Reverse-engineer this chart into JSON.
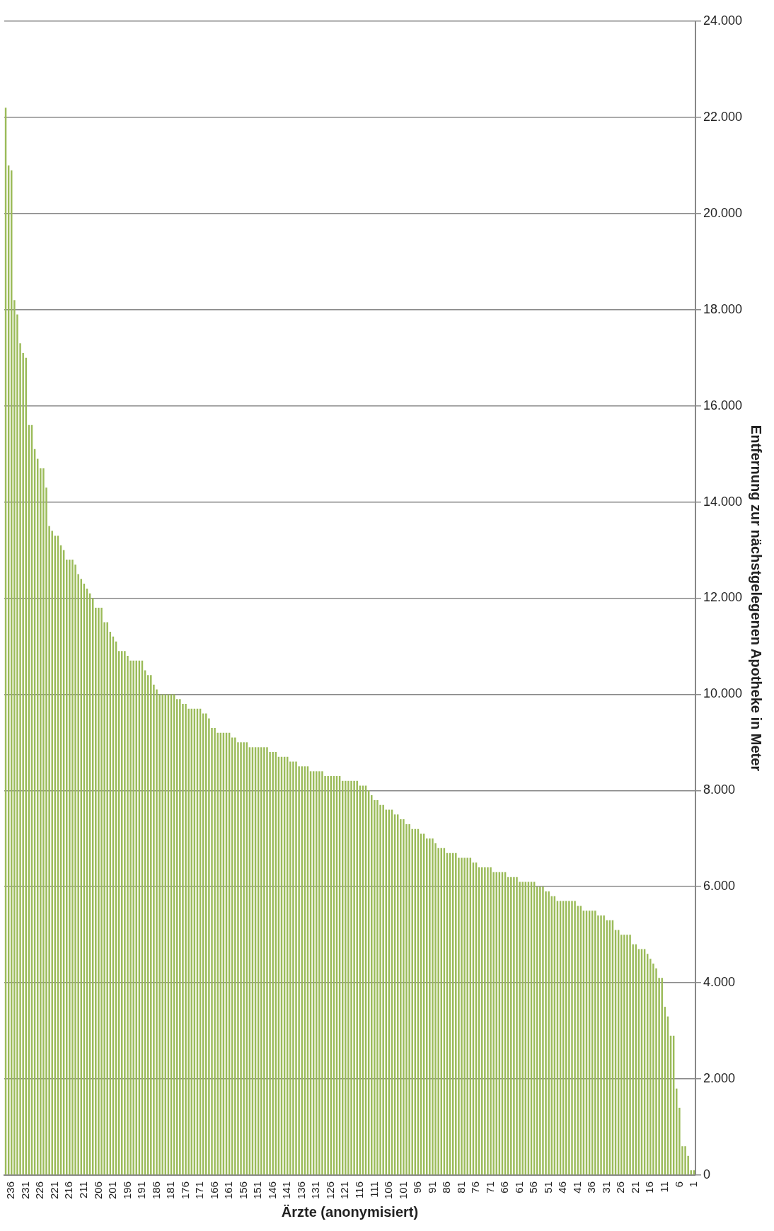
{
  "chart_data": {
    "type": "bar",
    "xlabel": "Ärzte (anonymisiert)",
    "ylabel": "Entfernung zur nächstgelegenen Apotheke in Meter",
    "categories": [
      null,
      null,
      "236",
      null,
      null,
      null,
      null,
      "231",
      null,
      null,
      null,
      null,
      "226",
      null,
      null,
      null,
      null,
      "221",
      null,
      null,
      null,
      null,
      "216",
      null,
      null,
      null,
      null,
      "211",
      null,
      null,
      null,
      null,
      "206",
      null,
      null,
      null,
      null,
      "201",
      null,
      null,
      null,
      null,
      "196",
      null,
      null,
      null,
      null,
      "191",
      null,
      null,
      null,
      null,
      "186",
      null,
      null,
      null,
      null,
      "181",
      null,
      null,
      null,
      null,
      "176",
      null,
      null,
      null,
      null,
      "171",
      null,
      null,
      null,
      null,
      "166",
      null,
      null,
      null,
      null,
      "161",
      null,
      null,
      null,
      null,
      "156",
      null,
      null,
      null,
      null,
      "151",
      null,
      null,
      null,
      null,
      "146",
      null,
      null,
      null,
      null,
      "141",
      null,
      null,
      null,
      null,
      "136",
      null,
      null,
      null,
      null,
      "131",
      null,
      null,
      null,
      null,
      "126",
      null,
      null,
      null,
      null,
      "121",
      null,
      null,
      null,
      null,
      "116",
      null,
      null,
      null,
      null,
      "111",
      null,
      null,
      null,
      null,
      "106",
      null,
      null,
      null,
      null,
      "101",
      null,
      null,
      null,
      null,
      "96",
      null,
      null,
      null,
      null,
      "91",
      null,
      null,
      null,
      null,
      "86",
      null,
      null,
      null,
      null,
      "81",
      null,
      null,
      null,
      null,
      "76",
      null,
      null,
      null,
      null,
      "71",
      null,
      null,
      null,
      null,
      "66",
      null,
      null,
      null,
      null,
      "61",
      null,
      null,
      null,
      null,
      "56",
      null,
      null,
      null,
      null,
      "51",
      null,
      null,
      null,
      null,
      "46",
      null,
      null,
      null,
      null,
      "41",
      null,
      null,
      null,
      null,
      "36",
      null,
      null,
      null,
      null,
      "31",
      null,
      null,
      null,
      null,
      "26",
      null,
      null,
      null,
      null,
      "21",
      null,
      null,
      null,
      null,
      "16",
      null,
      null,
      null,
      null,
      "11",
      null,
      null,
      null,
      null,
      "6",
      null,
      null,
      null,
      null,
      "1"
    ],
    "values": [
      22200,
      21000,
      20900,
      18200,
      17900,
      17300,
      17100,
      17000,
      15600,
      15600,
      15100,
      14900,
      14700,
      14700,
      14300,
      13500,
      13400,
      13300,
      13300,
      13100,
      13000,
      12800,
      12800,
      12800,
      12700,
      12500,
      12400,
      12300,
      12200,
      12100,
      12000,
      11800,
      11800,
      11800,
      11500,
      11500,
      11300,
      11200,
      11100,
      10900,
      10900,
      10900,
      10800,
      10700,
      10700,
      10700,
      10700,
      10700,
      10500,
      10400,
      10400,
      10200,
      10100,
      10000,
      10000,
      10000,
      10000,
      10000,
      10000,
      9900,
      9900,
      9800,
      9800,
      9700,
      9700,
      9700,
      9700,
      9700,
      9600,
      9600,
      9500,
      9300,
      9300,
      9200,
      9200,
      9200,
      9200,
      9200,
      9100,
      9100,
      9000,
      9000,
      9000,
      9000,
      8900,
      8900,
      8900,
      8900,
      8900,
      8900,
      8900,
      8800,
      8800,
      8800,
      8700,
      8700,
      8700,
      8700,
      8600,
      8600,
      8600,
      8500,
      8500,
      8500,
      8500,
      8400,
      8400,
      8400,
      8400,
      8400,
      8300,
      8300,
      8300,
      8300,
      8300,
      8300,
      8200,
      8200,
      8200,
      8200,
      8200,
      8200,
      8100,
      8100,
      8100,
      8000,
      7900,
      7800,
      7800,
      7700,
      7700,
      7600,
      7600,
      7600,
      7500,
      7500,
      7400,
      7400,
      7300,
      7300,
      7200,
      7200,
      7200,
      7100,
      7100,
      7000,
      7000,
      7000,
      6900,
      6800,
      6800,
      6800,
      6700,
      6700,
      6700,
      6700,
      6600,
      6600,
      6600,
      6600,
      6600,
      6500,
      6500,
      6400,
      6400,
      6400,
      6400,
      6400,
      6300,
      6300,
      6300,
      6300,
      6300,
      6200,
      6200,
      6200,
      6200,
      6100,
      6100,
      6100,
      6100,
      6100,
      6100,
      6000,
      6000,
      6000,
      5900,
      5900,
      5800,
      5800,
      5700,
      5700,
      5700,
      5700,
      5700,
      5700,
      5700,
      5600,
      5600,
      5500,
      5500,
      5500,
      5500,
      5500,
      5400,
      5400,
      5400,
      5300,
      5300,
      5300,
      5100,
      5100,
      5000,
      5000,
      5000,
      5000,
      4800,
      4800,
      4700,
      4700,
      4700,
      4600,
      4500,
      4400,
      4300,
      4100,
      4100,
      3500,
      3300,
      2900,
      2900,
      1800,
      1400,
      600,
      600,
      400,
      100,
      100
    ],
    "color": "#9bbb59",
    "ylim": [
      0,
      24000
    ],
    "yticks": [
      0,
      {
        "value": 2000,
        "label": "2.000"
      },
      {
        "value": 4000,
        "label": "4.000"
      },
      {
        "value": 6000,
        "label": "6.000"
      },
      {
        "value": 8000,
        "label": "8.000"
      },
      {
        "value": 10000,
        "label": "10.000"
      },
      {
        "value": 12000,
        "label": "12.000"
      },
      {
        "value": 14000,
        "label": "14.000"
      },
      {
        "value": 16000,
        "label": "16.000"
      },
      {
        "value": 18000,
        "label": "18.000"
      },
      {
        "value": 20000,
        "label": "20.000"
      },
      {
        "value": 22000,
        "label": "22.000"
      },
      {
        "value": 24000,
        "label": "24.000"
      }
    ],
    "grid": "y"
  }
}
